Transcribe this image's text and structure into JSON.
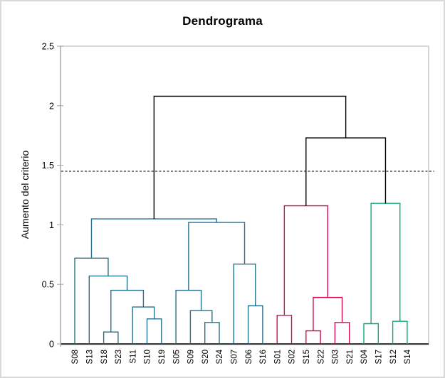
{
  "chart_data": {
    "type": "dendrogram",
    "title": "Dendrograma",
    "y_axis": {
      "label": "Aumento del criterio",
      "min": 0,
      "max": 2.5,
      "ticks": [
        {
          "v": 0,
          "t": "0"
        },
        {
          "v": 0.5,
          "t": "0.5"
        },
        {
          "v": 1,
          "t": "1"
        },
        {
          "v": 1.5,
          "t": "1.5"
        },
        {
          "v": 2,
          "t": "2"
        },
        {
          "v": 2.5,
          "t": "2.5"
        }
      ]
    },
    "cut_line": {
      "value": 1.45,
      "style": "dashed",
      "color": "#000000"
    },
    "leaves": [
      "S08",
      "S13",
      "S18",
      "S23",
      "S11",
      "S10",
      "S19",
      "S05",
      "S09",
      "S20",
      "S24",
      "S07",
      "S06",
      "S16",
      "S01",
      "S02",
      "S15",
      "S22",
      "S03",
      "S21",
      "S04",
      "S17",
      "S12",
      "S14"
    ],
    "clusters": {
      "blue": "#26718E",
      "pink": "#D40D53",
      "green": "#0BAD74",
      "link": "#000000"
    },
    "merges": [
      {
        "id": "b1",
        "a": "S18",
        "b": "S23",
        "h": 0.1,
        "c": "blue"
      },
      {
        "id": "b2",
        "a": "S10",
        "b": "S19",
        "h": 0.21,
        "c": "blue"
      },
      {
        "id": "b3",
        "a": "S11",
        "b": "b2",
        "h": 0.31,
        "c": "blue"
      },
      {
        "id": "b4",
        "a": "b1",
        "b": "b3",
        "h": 0.45,
        "c": "blue"
      },
      {
        "id": "b5",
        "a": "S13",
        "b": "b4",
        "h": 0.57,
        "c": "blue"
      },
      {
        "id": "b6",
        "a": "S08",
        "b": "b5",
        "h": 0.72,
        "c": "blue"
      },
      {
        "id": "b7",
        "a": "S20",
        "b": "S24",
        "h": 0.18,
        "c": "blue"
      },
      {
        "id": "b8",
        "a": "S09",
        "b": "b7",
        "h": 0.28,
        "c": "blue"
      },
      {
        "id": "b9",
        "a": "S05",
        "b": "b8",
        "h": 0.45,
        "c": "blue"
      },
      {
        "id": "b10",
        "a": "S06",
        "b": "S16",
        "h": 0.32,
        "c": "blue"
      },
      {
        "id": "b11",
        "a": "S07",
        "b": "b10",
        "h": 0.67,
        "c": "blue"
      },
      {
        "id": "b12",
        "a": "b9",
        "b": "b11",
        "h": 1.02,
        "c": "blue"
      },
      {
        "id": "b13",
        "a": "b6",
        "b": "b12",
        "h": 1.05,
        "c": "blue"
      },
      {
        "id": "p1",
        "a": "S01",
        "b": "S02",
        "h": 0.24,
        "c": "pink"
      },
      {
        "id": "p2",
        "a": "S15",
        "b": "S22",
        "h": 0.11,
        "c": "pink"
      },
      {
        "id": "p3",
        "a": "S03",
        "b": "S21",
        "h": 0.18,
        "c": "pink"
      },
      {
        "id": "p4",
        "a": "p2",
        "b": "p3",
        "h": 0.39,
        "c": "pink"
      },
      {
        "id": "p5",
        "a": "p1",
        "b": "p4",
        "h": 1.16,
        "c": "pink"
      },
      {
        "id": "g1",
        "a": "S04",
        "b": "S17",
        "h": 0.17,
        "c": "green"
      },
      {
        "id": "g2",
        "a": "S12",
        "b": "S14",
        "h": 0.19,
        "c": "green"
      },
      {
        "id": "g3",
        "a": "g1",
        "b": "g2",
        "h": 1.18,
        "c": "green"
      },
      {
        "id": "k1",
        "a": "p5",
        "b": "g3",
        "h": 1.73,
        "c": "link"
      },
      {
        "id": "k2",
        "a": "b13",
        "b": "k1",
        "h": 2.08,
        "c": "link"
      }
    ]
  }
}
